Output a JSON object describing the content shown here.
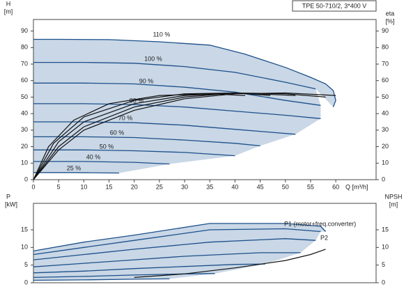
{
  "chart_data": [
    {
      "type": "line",
      "title": "TPE 50-710/2, 3*400 V",
      "ylabel": "H",
      "yunit": "[m]",
      "y2label": "eta",
      "y2unit": "[%]",
      "xlabel": "Q [m³/h]",
      "xlim": [
        0,
        68
      ],
      "ylim": [
        0,
        97
      ],
      "y2lim": [
        0,
        97
      ],
      "xticks": [
        0,
        5,
        10,
        15,
        20,
        25,
        30,
        35,
        40,
        45,
        50,
        55,
        60
      ],
      "yticks": [
        0,
        10,
        20,
        30,
        40,
        50,
        60,
        70,
        80,
        90
      ],
      "y2ticks": [
        0,
        10,
        20,
        30,
        40,
        50,
        60,
        70,
        80,
        90
      ],
      "area_color": "#c9d7e6",
      "series": [
        {
          "name": "110 %",
          "color": "#1c4f8a",
          "x": [
            0,
            5.5,
            15,
            25,
            35,
            42,
            50,
            55,
            58,
            59.5,
            60,
            59.5
          ],
          "values": [
            85,
            85,
            84.8,
            83.5,
            81.5,
            76,
            68,
            62,
            58,
            54,
            48,
            44
          ]
        },
        {
          "name": "100 %",
          "color": "#1c4f8a",
          "x": [
            0,
            10,
            20,
            30,
            40,
            50,
            56
          ],
          "values": [
            71,
            71,
            70.5,
            68.5,
            65,
            59,
            55
          ]
        },
        {
          "name": "90 %",
          "color": "#1c4f8a",
          "x": [
            0,
            10,
            20,
            30,
            40,
            50,
            57
          ],
          "values": [
            58.5,
            58.5,
            58,
            56,
            53,
            48,
            45
          ]
        },
        {
          "name": "80 %",
          "color": "#1c4f8a",
          "x": [
            0,
            10,
            20,
            30,
            40,
            50,
            57
          ],
          "values": [
            46,
            46,
            45.5,
            44,
            41.5,
            39,
            37
          ]
        },
        {
          "name": "70 %",
          "color": "#1c4f8a",
          "x": [
            0,
            10,
            20,
            30,
            40,
            52
          ],
          "values": [
            35,
            35,
            34.5,
            33,
            30.5,
            27.5
          ]
        },
        {
          "name": "60 %",
          "color": "#1c4f8a",
          "x": [
            0,
            10,
            20,
            30,
            40,
            45
          ],
          "values": [
            26,
            26,
            25.5,
            24,
            22,
            20.5
          ]
        },
        {
          "name": "50 %",
          "color": "#1c4f8a",
          "x": [
            0,
            10,
            20,
            30,
            40
          ],
          "values": [
            18,
            18,
            17.5,
            16.5,
            14.5
          ]
        },
        {
          "name": "40 %",
          "color": "#1c4f8a",
          "x": [
            0,
            10,
            20,
            27
          ],
          "values": [
            11,
            11,
            10.5,
            9.5
          ]
        },
        {
          "name": "25 %",
          "color": "#1c4f8a",
          "x": [
            0,
            8,
            17
          ],
          "values": [
            4.3,
            4.3,
            4
          ]
        },
        {
          "axis": "y2",
          "color": "#111111",
          "x": [
            0,
            5,
            10,
            20,
            30,
            40,
            50,
            60
          ],
          "values": [
            0,
            18,
            30,
            42,
            49,
            52,
            52.5,
            51
          ]
        },
        {
          "axis": "y2",
          "color": "#111111",
          "x": [
            0,
            5,
            10,
            20,
            30,
            40,
            50,
            58
          ],
          "values": [
            0,
            20,
            32,
            44,
            50,
            52.5,
            52,
            50
          ]
        },
        {
          "axis": "y2",
          "color": "#111111",
          "x": [
            0,
            5,
            10,
            20,
            30,
            40,
            52
          ],
          "values": [
            0,
            23,
            35,
            46,
            51,
            52.5,
            51
          ]
        },
        {
          "axis": "y2",
          "color": "#111111",
          "x": [
            0,
            4,
            10,
            20,
            30,
            40,
            47
          ],
          "values": [
            0,
            22,
            38,
            48,
            52,
            52.5,
            51
          ]
        },
        {
          "axis": "y2",
          "color": "#111111",
          "x": [
            0,
            3,
            8,
            15,
            25,
            35,
            42
          ],
          "values": [
            0,
            20,
            36,
            46,
            51,
            52,
            51
          ]
        }
      ]
    },
    {
      "type": "line",
      "ylabel": "P",
      "yunit": "[kW]",
      "y2label": "NPSH",
      "y2unit": "[m]",
      "xlim": [
        0,
        68
      ],
      "ylim": [
        0,
        22.5
      ],
      "y2lim": [
        0,
        22.5
      ],
      "yticks": [
        0,
        5,
        10,
        15
      ],
      "y2ticks": [
        0,
        5,
        10,
        15
      ],
      "area_color": "#c9d7e6",
      "series": [
        {
          "name": "P1 (motor+freq.converter)",
          "color": "#1c4f8a",
          "x": [
            0,
            10,
            20,
            35,
            50,
            57,
            58
          ],
          "values": [
            9,
            11.5,
            13.5,
            16.8,
            16.8,
            16,
            14.5
          ]
        },
        {
          "name": "P2",
          "color": "#1c4f8a",
          "x": [
            0,
            10,
            20,
            35,
            50,
            57
          ],
          "values": [
            8,
            10,
            12,
            15,
            15.3,
            14.5
          ]
        },
        {
          "color": "#1c4f8a",
          "x": [
            0,
            10,
            20,
            35,
            50,
            56
          ],
          "values": [
            6.5,
            8,
            9.5,
            11.5,
            12.5,
            12
          ]
        },
        {
          "color": "#1c4f8a",
          "x": [
            0,
            10,
            20,
            30,
            45,
            53
          ],
          "values": [
            4.5,
            5.5,
            6.5,
            7.5,
            8.5,
            8.5
          ]
        },
        {
          "color": "#1c4f8a",
          "x": [
            0,
            10,
            20,
            30,
            40,
            46
          ],
          "values": [
            2.8,
            3.3,
            4,
            4.6,
            5.2,
            5.3
          ]
        },
        {
          "color": "#1c4f8a",
          "x": [
            0,
            10,
            20,
            30,
            36
          ],
          "values": [
            1.5,
            1.8,
            2.2,
            2.5,
            2.6
          ]
        },
        {
          "color": "#1c4f8a",
          "x": [
            0,
            10,
            20,
            27
          ],
          "values": [
            0.7,
            0.8,
            1,
            1.1
          ]
        },
        {
          "axis": "y2",
          "color": "#111111",
          "x": [
            20,
            30,
            40,
            50,
            55,
            58
          ],
          "values": [
            1.5,
            2.5,
            4.2,
            6.3,
            8,
            9.5
          ]
        }
      ]
    }
  ]
}
